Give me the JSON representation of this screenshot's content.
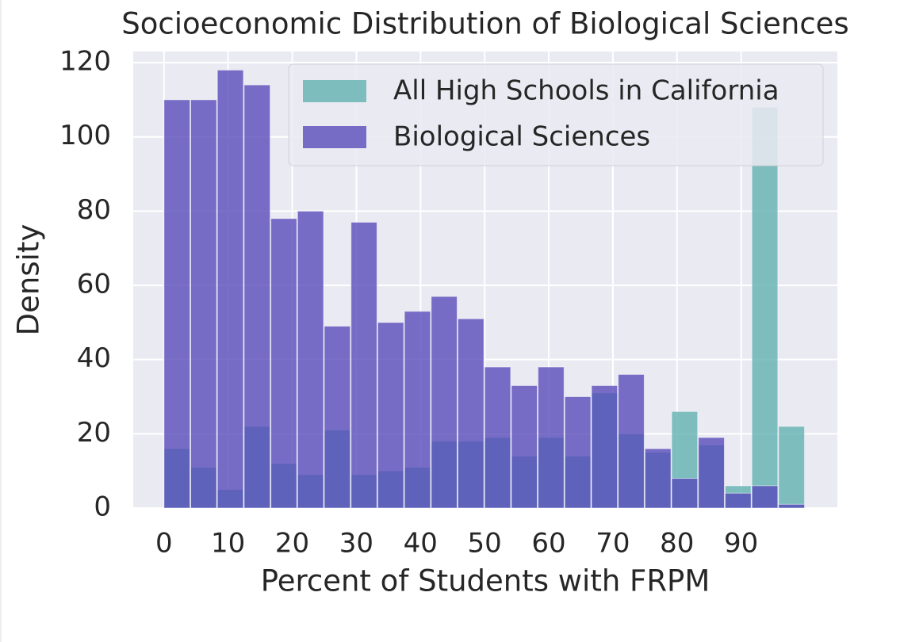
{
  "chart_data": {
    "type": "histogram",
    "title": "Socioeconomic Distribution of Biological Sciences",
    "xlabel": "Percent of Students with FRPM",
    "ylabel": "Density",
    "bins": [
      0,
      4.17,
      8.33,
      12.5,
      16.67,
      20.83,
      25,
      29.17,
      33.33,
      37.5,
      41.67,
      45.83,
      50,
      54.17,
      58.33,
      62.5,
      66.67,
      70.83,
      75,
      79.17,
      83.33,
      87.5,
      91.67,
      95.83,
      100
    ],
    "series": [
      {
        "name": "All High Schools in California",
        "color": "#5fb0b0",
        "values": [
          16,
          11,
          5,
          22,
          12,
          9,
          21,
          9,
          10,
          11,
          18,
          18,
          19,
          14,
          19,
          14,
          31,
          20,
          15,
          26,
          17,
          6,
          108,
          22
        ]
      },
      {
        "name": "Biological Sciences",
        "color": "#5548b8",
        "values": [
          110,
          110,
          118,
          114,
          78,
          80,
          49,
          77,
          50,
          53,
          57,
          51,
          38,
          33,
          38,
          30,
          33,
          36,
          16,
          8,
          19,
          4,
          6,
          1
        ]
      }
    ],
    "xlim": [
      -4.8,
      105
    ],
    "ylim": [
      0,
      123
    ],
    "xticks": [
      0,
      10,
      20,
      30,
      40,
      50,
      60,
      70,
      80,
      90
    ],
    "yticks": [
      0,
      20,
      40,
      60,
      80,
      100,
      120
    ],
    "grid": true,
    "legend": "upper right"
  }
}
